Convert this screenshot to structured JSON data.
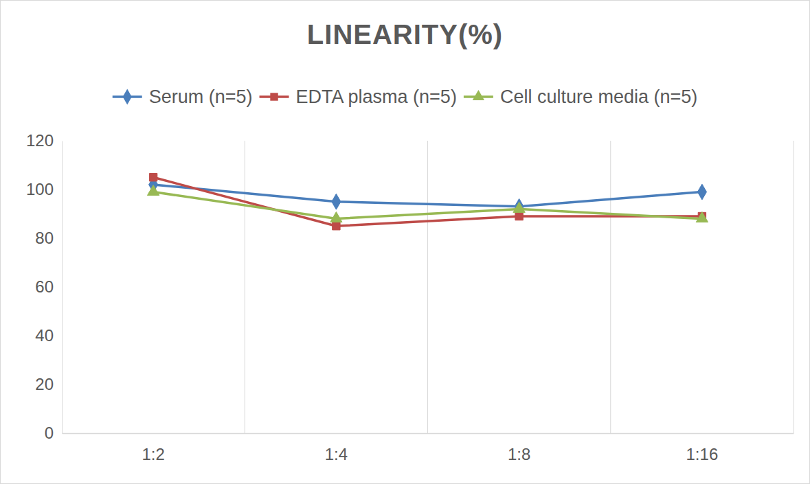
{
  "chart_data": {
    "type": "line",
    "title": "LINEARITY(%)",
    "categories": [
      "1:2",
      "1:4",
      "1:8",
      "1:16"
    ],
    "series": [
      {
        "name": "Serum (n=5)",
        "color": "#4a7ebb",
        "marker": "diamond",
        "values": [
          102,
          95,
          93,
          99
        ]
      },
      {
        "name": "EDTA plasma (n=5)",
        "color": "#be4b48",
        "marker": "square",
        "values": [
          105,
          85,
          89,
          89
        ]
      },
      {
        "name": "Cell culture media (n=5)",
        "color": "#98b954",
        "marker": "triangle",
        "values": [
          99,
          88,
          92,
          88
        ]
      }
    ],
    "ylim": [
      0,
      120
    ],
    "yticks": [
      0,
      20,
      40,
      60,
      80,
      100,
      120
    ],
    "grid": true,
    "legend": "top"
  }
}
